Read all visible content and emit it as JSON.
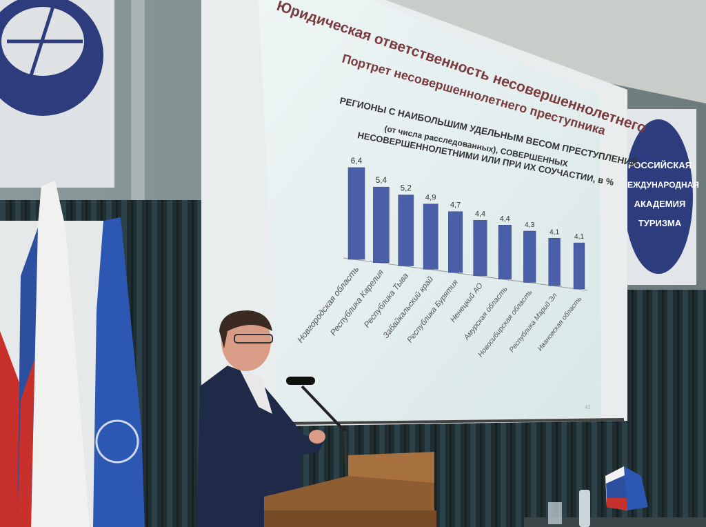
{
  "slide": {
    "heading": "Юридическая ответственность несовершеннолетнего",
    "subheading": "Портрет несовершеннолетнего преступника",
    "page_number": "41",
    "colors": {
      "heading": "#7a3a3e",
      "bar": "#4a5fa8",
      "background": "#e4efef"
    }
  },
  "chart_data": {
    "type": "bar",
    "title": "РЕГИОНЫ С НАИБОЛЬШИМ УДЕЛЬНЫМ ВЕСОМ ПРЕСТУПЛЕНИЙ (от числа расследованных), СОВЕРШЕННЫХ НЕСОВЕРШЕННОЛЕТНИМИ ИЛИ ПРИ ИХ СОУЧАСТИИ, в %",
    "title_lines": [
      "РЕГИОНЫ С НАИБОЛЬШИМ УДЕЛЬНЫМ ВЕСОМ ПРЕСТУПЛЕНИЙ",
      "(от числа расследованных), СОВЕРШЕННЫХ",
      "НЕСОВЕРШЕННОЛЕТНИМИ ИЛИ ПРИ ИХ СОУЧАСТИИ, в %"
    ],
    "categories": [
      "Новгородская  область",
      "Республика Карелия",
      "Республика Тыва",
      "Забайкальский край",
      "Республика Бурятия",
      "Ненецкий АО",
      "Амурская область",
      "Новосибирская область",
      "Республика Марий Эл",
      "Ивановская область"
    ],
    "values": [
      6.4,
      5.4,
      5.2,
      4.9,
      4.7,
      4.4,
      4.4,
      4.3,
      4.1,
      4.1
    ],
    "value_labels": [
      "6,4",
      "5,4",
      "5,2",
      "4,9",
      "4,7",
      "4,4",
      "4,4",
      "4,3",
      "4,1",
      "4,1"
    ],
    "xlabel": "",
    "ylabel": "",
    "ylim": [
      0,
      7
    ],
    "grid": false
  },
  "banner": {
    "lines": [
      "РОССИЙСКАЯ",
      "МЕЖДУНАРОДНАЯ",
      "АКАДЕМИЯ",
      "ТУРИЗМА"
    ],
    "color": "#2c3c7c"
  }
}
